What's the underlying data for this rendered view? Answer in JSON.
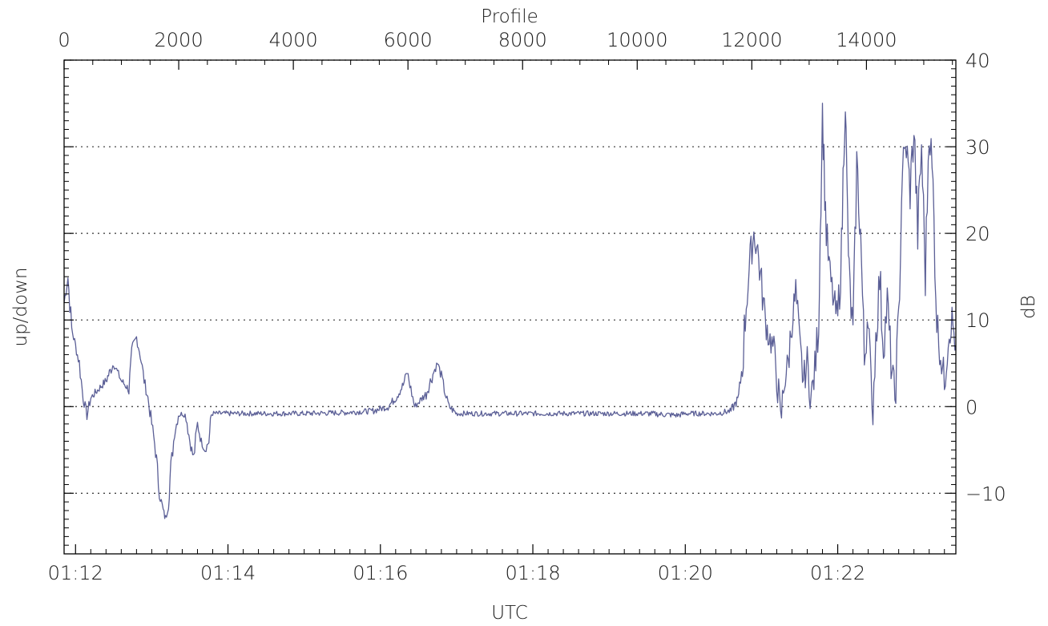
{
  "chart_data": {
    "type": "line",
    "title": "",
    "xlabel": "UTC",
    "x2label": "Profile",
    "ylabel": "up/down",
    "y2label": "dB",
    "xlim_minutes": [
      71.85,
      83.55
    ],
    "x_ticks": [
      {
        "label": "01:12",
        "minutes": 72
      },
      {
        "label": "01:14",
        "minutes": 74
      },
      {
        "label": "01:16",
        "minutes": 76
      },
      {
        "label": "01:18",
        "minutes": 78
      },
      {
        "label": "01:20",
        "minutes": 80
      },
      {
        "label": "01:22",
        "minutes": 82
      }
    ],
    "profile_lim": [
      0,
      15560
    ],
    "profile_ticks": [
      "0",
      "2000",
      "4000",
      "6000",
      "8000",
      "10000",
      "12000",
      "14000"
    ],
    "ylim": [
      -17,
      40
    ],
    "y_ticks": [
      "−10",
      "0",
      "10",
      "20",
      "30",
      "40"
    ],
    "grid": "horizontal dotted at y = -10, 0, 10, 20, 30, 40",
    "line_color": "#5b5f96",
    "series": [
      {
        "points": [
          [
            71.85,
            12
          ],
          [
            71.9,
            15
          ],
          [
            71.95,
            9
          ],
          [
            72.0,
            7
          ],
          [
            72.05,
            5
          ],
          [
            72.1,
            1
          ],
          [
            72.15,
            -1
          ],
          [
            72.2,
            1
          ],
          [
            72.3,
            2
          ],
          [
            72.4,
            3
          ],
          [
            72.5,
            5
          ],
          [
            72.55,
            4
          ],
          [
            72.6,
            3
          ],
          [
            72.7,
            2
          ],
          [
            72.75,
            7
          ],
          [
            72.8,
            8
          ],
          [
            72.85,
            6
          ],
          [
            72.9,
            3
          ],
          [
            72.95,
            1
          ],
          [
            73.0,
            -2
          ],
          [
            73.05,
            -5
          ],
          [
            73.1,
            -10
          ],
          [
            73.15,
            -12
          ],
          [
            73.18,
            -13
          ],
          [
            73.22,
            -11
          ],
          [
            73.25,
            -7
          ],
          [
            73.3,
            -3
          ],
          [
            73.35,
            -1
          ],
          [
            73.4,
            -0.8
          ],
          [
            73.45,
            -1
          ],
          [
            73.5,
            -4
          ],
          [
            73.55,
            -6
          ],
          [
            73.6,
            -2
          ],
          [
            73.65,
            -4
          ],
          [
            73.7,
            -5
          ],
          [
            73.75,
            -4
          ],
          [
            73.78,
            -1
          ],
          [
            73.8,
            -0.8
          ],
          [
            74.0,
            -0.8
          ],
          [
            74.5,
            -0.8
          ],
          [
            75.0,
            -0.8
          ],
          [
            75.5,
            -0.7
          ],
          [
            75.9,
            -0.5
          ],
          [
            76.1,
            0
          ],
          [
            76.2,
            1
          ],
          [
            76.3,
            2.5
          ],
          [
            76.35,
            4
          ],
          [
            76.4,
            2
          ],
          [
            76.45,
            0
          ],
          [
            76.5,
            0.5
          ],
          [
            76.6,
            1.5
          ],
          [
            76.7,
            4
          ],
          [
            76.75,
            5
          ],
          [
            76.8,
            3.5
          ],
          [
            76.85,
            1.5
          ],
          [
            76.9,
            0
          ],
          [
            77.0,
            -0.8
          ],
          [
            77.5,
            -0.8
          ],
          [
            78.0,
            -0.8
          ],
          [
            78.5,
            -0.8
          ],
          [
            79.0,
            -0.8
          ],
          [
            79.5,
            -0.8
          ],
          [
            79.9,
            -1
          ],
          [
            80.0,
            -0.8
          ],
          [
            80.4,
            -0.8
          ],
          [
            80.6,
            -0.5
          ],
          [
            80.7,
            1
          ],
          [
            80.75,
            5
          ],
          [
            80.8,
            12
          ],
          [
            80.85,
            17
          ],
          [
            80.9,
            20
          ],
          [
            80.95,
            18
          ],
          [
            81.0,
            14
          ],
          [
            81.05,
            10
          ],
          [
            81.1,
            8
          ],
          [
            81.15,
            7
          ],
          [
            81.2,
            4
          ],
          [
            81.25,
            -2
          ],
          [
            81.3,
            3
          ],
          [
            81.35,
            5
          ],
          [
            81.4,
            10
          ],
          [
            81.45,
            13
          ],
          [
            81.5,
            7
          ],
          [
            81.55,
            3
          ],
          [
            81.6,
            5
          ],
          [
            81.65,
            1
          ],
          [
            81.7,
            4
          ],
          [
            81.75,
            10
          ],
          [
            81.78,
            25
          ],
          [
            81.8,
            34
          ],
          [
            81.82,
            28
          ],
          [
            81.85,
            20
          ],
          [
            81.9,
            15
          ],
          [
            81.95,
            12
          ],
          [
            82.0,
            10
          ],
          [
            82.05,
            18
          ],
          [
            82.08,
            30
          ],
          [
            82.1,
            36
          ],
          [
            82.12,
            25
          ],
          [
            82.15,
            15
          ],
          [
            82.2,
            8
          ],
          [
            82.25,
            28
          ],
          [
            82.3,
            20
          ],
          [
            82.35,
            5
          ],
          [
            82.4,
            12
          ],
          [
            82.45,
            -2
          ],
          [
            82.5,
            8
          ],
          [
            82.55,
            15
          ],
          [
            82.6,
            7
          ],
          [
            82.65,
            12
          ],
          [
            82.7,
            5
          ],
          [
            82.75,
            1
          ],
          [
            82.8,
            10
          ],
          [
            82.85,
            28
          ],
          [
            82.9,
            30
          ],
          [
            82.95,
            25
          ],
          [
            83.0,
            32
          ],
          [
            83.05,
            20
          ],
          [
            83.1,
            30
          ],
          [
            83.15,
            15
          ],
          [
            83.2,
            33
          ],
          [
            83.25,
            25
          ],
          [
            83.3,
            10
          ],
          [
            83.35,
            6
          ],
          [
            83.4,
            3
          ],
          [
            83.45,
            8
          ],
          [
            83.5,
            10
          ],
          [
            83.55,
            7
          ]
        ]
      }
    ]
  }
}
